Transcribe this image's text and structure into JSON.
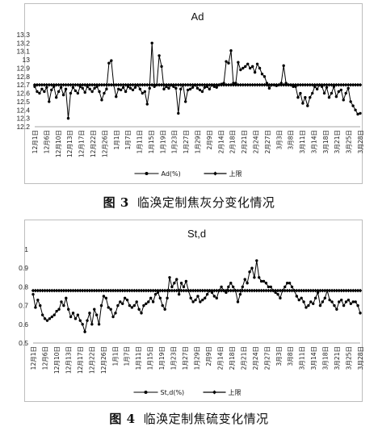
{
  "charts": [
    {
      "caption_num": "图 3",
      "caption_text": "临涣定制焦灰分变化情况",
      "chart_data": {
        "type": "line",
        "title": "Ad",
        "xlabel": "",
        "ylabel": "",
        "ylim": [
          12.2,
          13.3
        ],
        "yticks": [
          "12.2",
          "12.3",
          "12.4",
          "12.5",
          "12.6",
          "12.7",
          "12.8",
          "12.9",
          "13",
          "13.1",
          "13.2",
          "13.3"
        ],
        "x_tick_labels": [
          "12月1日",
          "12月6日",
          "12月10日",
          "12月13日",
          "12月17日",
          "12月22日",
          "12月26日",
          "1月1日",
          "1月7日",
          "1月11日",
          "1月15日",
          "1月19日",
          "1月23日",
          "1月27日",
          "1月29日",
          "2月9日",
          "2月14日",
          "2月18日",
          "2月21日",
          "2月24日",
          "2月27日",
          "3月3日",
          "3月8日",
          "3月11日",
          "3月14日",
          "3月18日",
          "3月21日",
          "3月25日",
          "3月28日"
        ],
        "grid": false,
        "legend_position": "bottom",
        "series": [
          {
            "name": "Ad(%)",
            "color": "#000000",
            "marker": "dot",
            "values": [
              12.68,
              12.62,
              12.6,
              12.65,
              12.62,
              12.67,
              12.5,
              12.64,
              12.68,
              12.55,
              12.62,
              12.67,
              12.58,
              12.65,
              12.3,
              12.6,
              12.67,
              12.63,
              12.6,
              12.68,
              12.66,
              12.61,
              12.68,
              12.65,
              12.62,
              12.66,
              12.68,
              12.62,
              12.52,
              12.6,
              12.65,
              12.96,
              12.99,
              12.7,
              12.56,
              12.65,
              12.64,
              12.67,
              12.62,
              12.68,
              12.66,
              12.64,
              12.67,
              12.7,
              12.65,
              12.6,
              12.62,
              12.47,
              12.66,
              13.2,
              12.68,
              12.7,
              13.05,
              12.92,
              12.65,
              12.68,
              12.66,
              12.7,
              12.68,
              12.66,
              12.36,
              12.65,
              12.7,
              12.5,
              12.64,
              12.65,
              12.67,
              12.7,
              12.66,
              12.64,
              12.62,
              12.67,
              12.68,
              12.65,
              12.7,
              12.68,
              12.67,
              12.7,
              12.71,
              12.72,
              12.98,
              12.96,
              13.11,
              12.72,
              12.72,
              12.97,
              12.88,
              12.9,
              12.92,
              12.95,
              12.9,
              12.92,
              12.85,
              12.95,
              12.9,
              12.83,
              12.8,
              12.72,
              12.66,
              12.7,
              12.7,
              12.69,
              12.7,
              12.72,
              12.93,
              12.72,
              12.7,
              12.7,
              12.68,
              12.68,
              12.55,
              12.6,
              12.48,
              12.55,
              12.45,
              12.55,
              12.6,
              12.68,
              12.65,
              12.7,
              12.68,
              12.6,
              12.67,
              12.55,
              12.6,
              12.68,
              12.56,
              12.62,
              12.64,
              12.52,
              12.6,
              12.66,
              12.5,
              12.45,
              12.4,
              12.35,
              12.36
            ]
          },
          {
            "name": "上限",
            "color": "#000000",
            "marker": "diamond",
            "constant": 12.7
          }
        ]
      }
    },
    {
      "caption_num": "图 4",
      "caption_text": "临涣定制焦硫变化情况",
      "chart_data": {
        "type": "line",
        "title": "St,d",
        "xlabel": "",
        "ylabel": "",
        "ylim": [
          0.5,
          1.0
        ],
        "yticks": [
          "0.5",
          "0.6",
          "0.7",
          "0.8",
          "0.9",
          "1"
        ],
        "x_tick_labels": [
          "12月1日",
          "12月6日",
          "12月10日",
          "12月13日",
          "12月17日",
          "12月22日",
          "12月26日",
          "1月1日",
          "1月7日",
          "1月11日",
          "1月15日",
          "1月19日",
          "1月23日",
          "1月27日",
          "1月29日",
          "2月9日",
          "2月14日",
          "2月18日",
          "2月21日",
          "2月24日",
          "2月27日",
          "3月3日",
          "3月8日",
          "3月11日",
          "3月14日",
          "3月18日",
          "3月21日",
          "3月25日",
          "3月28日"
        ],
        "grid": false,
        "legend_position": "bottom",
        "series": [
          {
            "name": "St,d(%)",
            "color": "#000000",
            "marker": "dot",
            "values": [
              0.76,
              0.69,
              0.73,
              0.7,
              0.65,
              0.63,
              0.62,
              0.63,
              0.64,
              0.65,
              0.67,
              0.68,
              0.72,
              0.7,
              0.74,
              0.68,
              0.64,
              0.66,
              0.63,
              0.65,
              0.62,
              0.6,
              0.56,
              0.62,
              0.66,
              0.6,
              0.68,
              0.65,
              0.6,
              0.7,
              0.75,
              0.74,
              0.69,
              0.68,
              0.64,
              0.66,
              0.7,
              0.72,
              0.71,
              0.74,
              0.73,
              0.7,
              0.69,
              0.7,
              0.72,
              0.68,
              0.66,
              0.7,
              0.71,
              0.72,
              0.74,
              0.72,
              0.76,
              0.77,
              0.74,
              0.7,
              0.68,
              0.74,
              0.85,
              0.8,
              0.82,
              0.84,
              0.76,
              0.82,
              0.8,
              0.83,
              0.78,
              0.74,
              0.72,
              0.73,
              0.75,
              0.72,
              0.73,
              0.74,
              0.76,
              0.78,
              0.77,
              0.75,
              0.74,
              0.78,
              0.8,
              0.78,
              0.77,
              0.8,
              0.82,
              0.8,
              0.78,
              0.72,
              0.76,
              0.8,
              0.84,
              0.82,
              0.88,
              0.9,
              0.85,
              0.94,
              0.85,
              0.83,
              0.83,
              0.82,
              0.8,
              0.8,
              0.78,
              0.77,
              0.76,
              0.74,
              0.78,
              0.8,
              0.82,
              0.82,
              0.8,
              0.78,
              0.75,
              0.73,
              0.74,
              0.72,
              0.69,
              0.7,
              0.72,
              0.71,
              0.74,
              0.77,
              0.7,
              0.72,
              0.74,
              0.78,
              0.73,
              0.72,
              0.7,
              0.68,
              0.72,
              0.73,
              0.7,
              0.72,
              0.73,
              0.71,
              0.72,
              0.72,
              0.7,
              0.66
            ]
          },
          {
            "name": "上限",
            "color": "#000000",
            "marker": "diamond",
            "constant": 0.78
          }
        ]
      }
    }
  ]
}
